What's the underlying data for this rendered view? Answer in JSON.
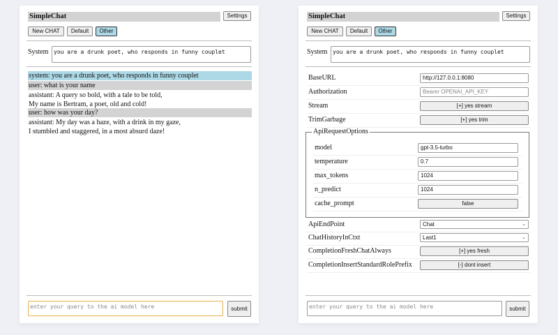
{
  "app_title": "SimpleChat",
  "settings_label": "Settings",
  "buttons": {
    "new_chat": "New CHAT",
    "default": "Default",
    "other": "Other"
  },
  "system_label": "System",
  "system_prompt": "you are a drunk poet, who responds in funny couplet",
  "messages": [
    {
      "role": "system",
      "lines": [
        "system: you are a drunk poet, who responds in funny couplet"
      ]
    },
    {
      "role": "user",
      "lines": [
        "user: what is your name"
      ]
    },
    {
      "role": "assistant",
      "lines": [
        "assistant: A query so bold, with a tale to be told,",
        "My name is Bertram, a poet, old and cold!"
      ]
    },
    {
      "role": "user",
      "lines": [
        "user: how was your day?"
      ]
    },
    {
      "role": "assistant",
      "lines": [
        "assistant: My day was a haze, with a drink in my gaze,",
        "I stumbled and staggered, in a most absurd daze!"
      ]
    }
  ],
  "query_placeholder": "enter your query to the ai model here",
  "submit_label": "submit",
  "settings": {
    "base_url": {
      "label": "BaseURL",
      "value": "http://127.0.0.1:8080"
    },
    "authorization": {
      "label": "Authorization",
      "placeholder": "Bearer OPENAI_API_KEY"
    },
    "stream": {
      "label": "Stream",
      "value": "[+] yes stream"
    },
    "trim_garbage": {
      "label": "TrimGarbage",
      "value": "[+] yes trim"
    },
    "api_request_options": {
      "legend": "ApiRequestOptions",
      "model": {
        "label": "model",
        "value": "gpt-3.5-turbo"
      },
      "temperature": {
        "label": "temperature",
        "value": "0.7"
      },
      "max_tokens": {
        "label": "max_tokens",
        "value": "1024"
      },
      "n_predict": {
        "label": "n_predict",
        "value": "1024"
      },
      "cache_prompt": {
        "label": "cache_prompt",
        "value": "false"
      }
    },
    "api_endpoint": {
      "label": "ApiEndPoint",
      "value": "Chat"
    },
    "chat_history": {
      "label": "ChatHistoryInCtxt",
      "value": "Last1"
    },
    "completion_fresh": {
      "label": "CompletionFreshChatAlways",
      "value": "[+] yes fresh"
    },
    "completion_insert": {
      "label": "CompletionInsertStandardRolePrefix",
      "value": "[-] dont insert"
    }
  },
  "colors": {
    "system_msg_bg": "#add8e6",
    "user_msg_bg": "#d3d3d3",
    "selected_button": "#add8e6",
    "focus_border": "#e8b04a"
  }
}
